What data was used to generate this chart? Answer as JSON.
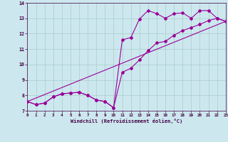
{
  "xlabel": "Windchill (Refroidissement éolien,°C)",
  "bg_color": "#cce8ee",
  "line_color": "#990099",
  "grid_color": "#aacccc",
  "xmin": 0,
  "xmax": 23,
  "ymin": 7,
  "ymax": 14,
  "xticks": [
    0,
    1,
    2,
    3,
    4,
    5,
    6,
    7,
    8,
    9,
    10,
    11,
    12,
    13,
    14,
    15,
    16,
    17,
    18,
    19,
    20,
    21,
    22,
    23
  ],
  "yticks": [
    7,
    8,
    9,
    10,
    11,
    12,
    13,
    14
  ],
  "series1_x": [
    0,
    1,
    2,
    3,
    4,
    5,
    6,
    7,
    8,
    9,
    10,
    11,
    12,
    13,
    14,
    15,
    16,
    17,
    18,
    19,
    20,
    21,
    22,
    23
  ],
  "series1_y": [
    7.6,
    7.4,
    7.5,
    7.9,
    8.1,
    8.15,
    8.2,
    8.0,
    7.7,
    7.6,
    7.2,
    11.6,
    11.75,
    12.95,
    13.5,
    13.3,
    13.0,
    13.3,
    13.35,
    13.0,
    13.5,
    13.5,
    13.0,
    12.8
  ],
  "series2_x": [
    0,
    1,
    2,
    3,
    4,
    5,
    6,
    7,
    8,
    9,
    10,
    11,
    12,
    13,
    14,
    15,
    16,
    17,
    18,
    19,
    20,
    21,
    22,
    23
  ],
  "series2_y": [
    7.6,
    7.4,
    7.5,
    7.9,
    8.1,
    8.15,
    8.2,
    8.0,
    7.7,
    7.6,
    7.2,
    9.5,
    9.75,
    10.3,
    10.9,
    11.4,
    11.5,
    11.9,
    12.2,
    12.4,
    12.6,
    12.85,
    13.0,
    12.8
  ],
  "series3_x": [
    0,
    23
  ],
  "series3_y": [
    7.6,
    12.8
  ],
  "marker": "D",
  "markersize": 2.0,
  "linewidth": 0.8
}
